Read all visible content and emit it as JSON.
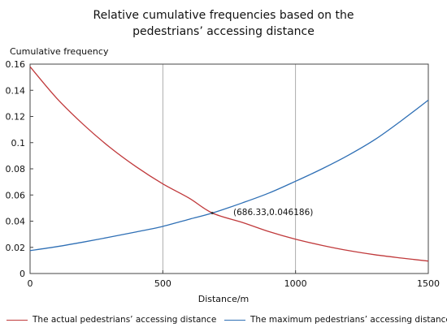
{
  "chart_data": {
    "type": "line",
    "title_lines": [
      "Relative cumulative frequencies based on the",
      "pedestrians’  accessing distance"
    ],
    "xlabel": "Distance/m",
    "ylabel": "Cumulative frequency",
    "xlim": [
      0,
      1500
    ],
    "ylim": [
      0,
      0.16
    ],
    "xticks": [
      0,
      500,
      1000,
      1500
    ],
    "yticks": [
      0,
      0.02,
      0.04,
      0.06,
      0.08,
      0.1,
      0.12,
      0.14,
      0.16
    ],
    "xtick_labels": [
      "0",
      "500",
      "1000",
      "1500"
    ],
    "ytick_labels": [
      "0",
      "0.02",
      "0.04",
      "0.06",
      "0.08",
      "0.1",
      "0.12",
      "0.14",
      "0.16"
    ],
    "grid": "vertical",
    "legend_position": "bottom",
    "series": [
      {
        "name": "The actual pedestrians’  accessing distance",
        "color": "#c0393b",
        "x": [
          0,
          100,
          200,
          300,
          400,
          500,
          600,
          686.33,
          800,
          900,
          1000,
          1100,
          1200,
          1300,
          1400,
          1500
        ],
        "y": [
          0.158,
          0.134,
          0.114,
          0.0965,
          0.0815,
          0.0685,
          0.0575,
          0.0462,
          0.039,
          0.032,
          0.0262,
          0.0215,
          0.0175,
          0.0143,
          0.0118,
          0.0095
        ]
      },
      {
        "name": "The maximum pedestrians’  accessing distance",
        "color": "#2e6fb5",
        "x": [
          0,
          100,
          200,
          300,
          400,
          500,
          600,
          686.33,
          800,
          900,
          1000,
          1100,
          1200,
          1300,
          1400,
          1500
        ],
        "y": [
          0.0175,
          0.0205,
          0.024,
          0.0278,
          0.0318,
          0.036,
          0.0415,
          0.0462,
          0.054,
          0.0615,
          0.0705,
          0.08,
          0.0905,
          0.1025,
          0.117,
          0.1325
        ]
      }
    ],
    "annotations": [
      {
        "text": "(686.33,0.046186)",
        "x": 686.33,
        "y": 0.046186
      }
    ]
  }
}
